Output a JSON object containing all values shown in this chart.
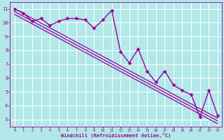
{
  "title": "",
  "xlabel": "Windchill (Refroidissement éolien,°C)",
  "ylabel": "",
  "bg_color": "#b2e8e8",
  "line_color": "#990099",
  "grid_color": "#ffffff",
  "xmin": -0.5,
  "xmax": 23.5,
  "ymin": 2.5,
  "ymax": 11.5,
  "yticks": [
    3,
    4,
    5,
    6,
    7,
    8,
    9,
    10,
    11
  ],
  "xticks": [
    0,
    1,
    2,
    3,
    4,
    5,
    6,
    7,
    8,
    9,
    10,
    11,
    12,
    13,
    14,
    15,
    16,
    17,
    18,
    19,
    20,
    21,
    22,
    23
  ],
  "series": [
    {
      "x": [
        0,
        1,
        2,
        3,
        4,
        5,
        6,
        7,
        8,
        9,
        10,
        11,
        12,
        13,
        14,
        15,
        16,
        17,
        18,
        19,
        20,
        21,
        22,
        23
      ],
      "y": [
        11.0,
        10.7,
        10.1,
        10.3,
        9.8,
        10.1,
        10.3,
        10.3,
        10.2,
        9.6,
        10.2,
        10.9,
        7.9,
        7.1,
        8.1,
        6.5,
        5.7,
        6.5,
        5.5,
        5.1,
        4.8,
        3.2,
        5.1,
        3.3
      ],
      "marker": "D",
      "linewidth": 1.0,
      "markersize": 2.5,
      "has_marker": true
    },
    {
      "x": [
        0,
        23
      ],
      "y": [
        11.0,
        3.1
      ],
      "marker": null,
      "linewidth": 0.9,
      "markersize": 0,
      "has_marker": false
    },
    {
      "x": [
        0,
        23
      ],
      "y": [
        10.8,
        2.9
      ],
      "marker": null,
      "linewidth": 0.9,
      "markersize": 0,
      "has_marker": false
    },
    {
      "x": [
        0,
        23
      ],
      "y": [
        10.6,
        2.7
      ],
      "marker": null,
      "linewidth": 0.9,
      "markersize": 0,
      "has_marker": false
    }
  ]
}
